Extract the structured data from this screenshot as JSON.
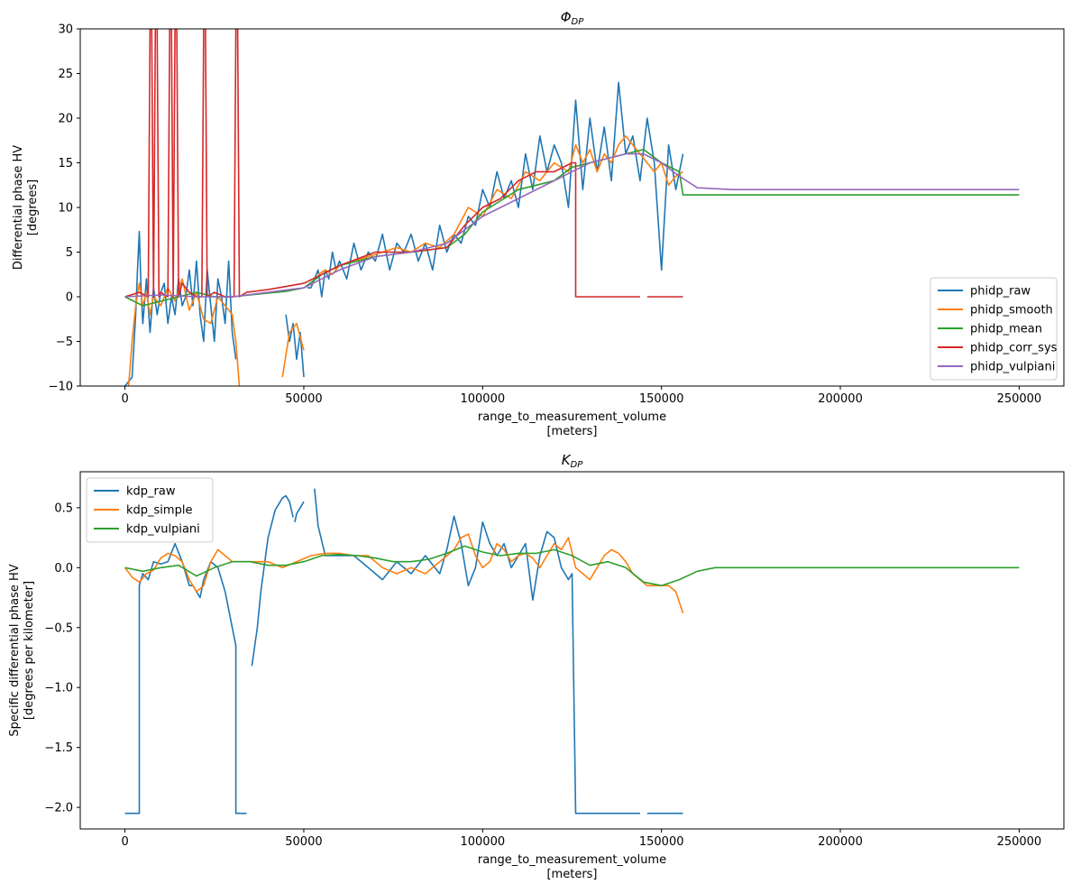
{
  "chart_data": [
    {
      "type": "line",
      "title": "Φ",
      "title_subscript": "DP",
      "xlabel": "range_to_measurement_volume",
      "xlabel_units": "[meters]",
      "ylabel": "Differential phase HV",
      "ylabel_units": "[degrees]",
      "xlim": [
        -12500,
        262500
      ],
      "ylim": [
        -10,
        30
      ],
      "x_ticks": [
        0,
        50000,
        100000,
        150000,
        200000,
        250000
      ],
      "x_tick_labels": [
        "0",
        "50000",
        "100000",
        "150000",
        "200000",
        "250000"
      ],
      "y_ticks": [
        -10,
        -5,
        0,
        5,
        10,
        15,
        20,
        25,
        30
      ],
      "y_tick_labels": [
        "−10",
        "−5",
        "0",
        "5",
        "10",
        "15",
        "20",
        "25",
        "30"
      ],
      "grid": false,
      "legend_position": "lower-right",
      "series": [
        {
          "name": "phidp_raw",
          "color": "#1f77b4",
          "x": [
            0,
            2000,
            3000,
            3500,
            4000,
            4500,
            5000,
            6000,
            7000,
            8000,
            9000,
            10000,
            11000,
            12000,
            13000,
            14000,
            15000,
            16000,
            17000,
            18000,
            19000,
            20000,
            21000,
            22000,
            23000,
            24000,
            25000,
            26000,
            27000,
            28000,
            29000,
            30000,
            31000,
            null,
            45000,
            46000,
            47000,
            48000,
            49000,
            50000,
            null,
            51000,
            52000,
            53000,
            54000,
            55000,
            56000,
            57000,
            58000,
            59000,
            60000,
            62000,
            64000,
            66000,
            68000,
            70000,
            72000,
            74000,
            76000,
            78000,
            80000,
            82000,
            84000,
            86000,
            88000,
            90000,
            92000,
            94000,
            96000,
            98000,
            100000,
            102000,
            104000,
            106000,
            108000,
            110000,
            112000,
            114000,
            116000,
            118000,
            120000,
            122000,
            124000,
            126000,
            128000,
            130000,
            132000,
            134000,
            136000,
            138000,
            140000,
            142000,
            144000,
            146000,
            148000,
            150000,
            152000,
            154000,
            156000
          ],
          "y": [
            -10,
            -9,
            -2,
            3,
            7.3,
            1,
            -3,
            2,
            -4,
            1,
            -2,
            0.5,
            1.5,
            -3,
            0,
            -2,
            2,
            -1,
            0,
            3,
            -1,
            4,
            -2,
            -5,
            3,
            -1,
            -5,
            2,
            0,
            -3,
            4,
            -4,
            -7,
            null,
            -2,
            -5,
            -3,
            -7,
            -4,
            -9,
            null,
            1,
            1,
            2,
            3,
            0,
            3,
            2,
            5,
            3,
            4,
            2,
            6,
            3,
            5,
            4,
            7,
            3,
            6,
            5,
            7,
            4,
            6,
            3,
            8,
            5,
            7,
            6,
            9,
            8,
            12,
            10,
            14,
            11,
            13,
            10,
            16,
            12,
            18,
            14,
            17,
            15,
            10,
            22,
            12,
            20,
            14,
            19,
            13,
            24,
            16,
            18,
            13,
            20,
            15,
            3,
            17,
            12,
            16
          ]
        },
        {
          "name": "phidp_smooth",
          "color": "#ff7f0e",
          "x": [
            1000,
            2000,
            3000,
            4000,
            5000,
            6000,
            7000,
            8000,
            10000,
            12000,
            14000,
            16000,
            18000,
            20000,
            22000,
            24000,
            26000,
            28000,
            30000,
            31000,
            32000,
            null,
            44000,
            46000,
            48000,
            50000,
            null,
            54000,
            56000,
            58000,
            60000,
            64000,
            68000,
            72000,
            76000,
            80000,
            84000,
            88000,
            92000,
            96000,
            100000,
            104000,
            108000,
            112000,
            116000,
            120000,
            124000,
            126000,
            128000,
            130000,
            132000,
            134000,
            136000,
            138000,
            140000,
            142000,
            144000,
            146000,
            148000,
            150000,
            152000,
            154000,
            156000
          ],
          "y": [
            -10,
            -5,
            -1,
            1.5,
            -1,
            0.5,
            -2,
            0,
            -1,
            1,
            -0.5,
            2,
            -1.5,
            0.5,
            -2.5,
            -3,
            0,
            -1,
            -2,
            -5,
            -10,
            null,
            -9,
            -4,
            -3,
            -6,
            null,
            2.5,
            3,
            2.5,
            3.5,
            4,
            4.5,
            5,
            5.5,
            5,
            6,
            5.5,
            7,
            10,
            9,
            12,
            11,
            14,
            13,
            15,
            14,
            17,
            15,
            16.5,
            14,
            16,
            15,
            17,
            18,
            17,
            16,
            15,
            14,
            15,
            12.5,
            13.5,
            14
          ]
        },
        {
          "name": "phidp_mean",
          "color": "#2ca02c",
          "x": [
            0,
            5000,
            10000,
            15000,
            20000,
            25000,
            30000,
            35000,
            40000,
            45000,
            50000,
            55000,
            60000,
            70000,
            80000,
            90000,
            95000,
            100000,
            110000,
            115000,
            120000,
            125000,
            130000,
            135000,
            140000,
            145000,
            150000,
            155000,
            156000,
            160000,
            200000,
            250000
          ],
          "y": [
            0,
            -1,
            -0.5,
            0,
            0.5,
            0,
            0,
            0.2,
            0.4,
            0.6,
            1,
            2.5,
            3.5,
            4.5,
            5,
            5.5,
            7,
            9.5,
            12,
            12.5,
            13,
            14.5,
            15,
            15.5,
            16,
            16.5,
            15,
            14,
            11.4,
            11.4,
            11.4,
            11.4
          ]
        },
        {
          "name": "phidp_corr_sys",
          "color": "#d62728",
          "x": [
            0,
            4000,
            6500,
            7000,
            7500,
            8000,
            8500,
            9000,
            9500,
            10000,
            12000,
            12500,
            13000,
            13500,
            14000,
            14500,
            15000,
            16000,
            18000,
            20000,
            21500,
            22000,
            22500,
            23000,
            25000,
            28000,
            30500,
            31000,
            31500,
            32000,
            34000,
            40000,
            50000,
            55000,
            60000,
            70000,
            80000,
            90000,
            95000,
            100000,
            105000,
            110000,
            115000,
            120000,
            125000,
            126000,
            126000,
            130000,
            140000,
            144000,
            null,
            146000,
            150000,
            156000
          ],
          "y": [
            0,
            0.5,
            0,
            30,
            30,
            0,
            30,
            30,
            0,
            0.5,
            0,
            30,
            30,
            0,
            30,
            30,
            0,
            1.5,
            0.5,
            0,
            0,
            30,
            30,
            0,
            0.5,
            0,
            0,
            30,
            30,
            0,
            0.5,
            0.8,
            1.5,
            2.5,
            3.5,
            5,
            5,
            5.5,
            8,
            10,
            11,
            13,
            14,
            14,
            15,
            15,
            0,
            0,
            0,
            0,
            null,
            0,
            0,
            0
          ]
        },
        {
          "name": "phidp_vulpiani",
          "color": "#9467bd",
          "x": [
            0,
            10000,
            20000,
            30000,
            40000,
            50000,
            55000,
            60000,
            70000,
            80000,
            90000,
            100000,
            110000,
            120000,
            130000,
            140000,
            145000,
            150000,
            155000,
            160000,
            170000,
            200000,
            250000
          ],
          "y": [
            0,
            0.2,
            0,
            0,
            0.5,
            1,
            2,
            3,
            4.5,
            5,
            6,
            9,
            11,
            13,
            15,
            16,
            16,
            15,
            13.5,
            12.2,
            12,
            12,
            12
          ]
        }
      ]
    },
    {
      "type": "line",
      "title": "K",
      "title_subscript": "DP",
      "xlabel": "range_to_measurement_volume",
      "xlabel_units": "[meters]",
      "ylabel": "Specific differential phase HV",
      "ylabel_units": "[degrees per kilometer]",
      "xlim": [
        -12500,
        262500
      ],
      "ylim": [
        -2.18,
        0.8
      ],
      "x_ticks": [
        0,
        50000,
        100000,
        150000,
        200000,
        250000
      ],
      "x_tick_labels": [
        "0",
        "50000",
        "100000",
        "150000",
        "200000",
        "250000"
      ],
      "y_ticks": [
        -2.0,
        -1.5,
        -1.0,
        -0.5,
        0.0,
        0.5
      ],
      "y_tick_labels": [
        "−2.0",
        "−1.5",
        "−1.0",
        "−0.5",
        "0.0",
        "0.5"
      ],
      "grid": false,
      "legend_position": "top-left",
      "series": [
        {
          "name": "kdp_raw",
          "color": "#1f77b4",
          "x": [
            0,
            4000,
            4000,
            5000,
            6500,
            7000,
            8000,
            10000,
            12000,
            14000,
            16000,
            18000,
            19000,
            20000,
            21000,
            22000,
            24000,
            26000,
            28000,
            30000,
            31000,
            31000,
            32000,
            34000,
            null,
            35500,
            37000,
            38000,
            40000,
            42000,
            44000,
            45000,
            46000,
            47000,
            null,
            47500,
            48000,
            49000,
            50000,
            null,
            53000,
            54000,
            56000,
            58000,
            60000,
            64000,
            68000,
            72000,
            76000,
            80000,
            84000,
            88000,
            90000,
            92000,
            94000,
            96000,
            98000,
            100000,
            102000,
            104000,
            106000,
            108000,
            110000,
            112000,
            114000,
            116000,
            118000,
            120000,
            122000,
            124000,
            125000,
            126000,
            126000,
            130000,
            140000,
            144000,
            null,
            146000,
            150000,
            156000
          ],
          "y": [
            -2.05,
            -2.05,
            -0.15,
            -0.05,
            -0.1,
            -0.05,
            0.05,
            0.03,
            0.05,
            0.2,
            0.05,
            -0.15,
            -0.15,
            -0.2,
            -0.25,
            -0.1,
            0.05,
            0.0,
            -0.2,
            -0.5,
            -0.65,
            -2.05,
            -2.05,
            -2.05,
            null,
            -0.82,
            -0.5,
            -0.2,
            0.25,
            0.48,
            0.58,
            0.6,
            0.55,
            0.42,
            null,
            0.38,
            0.45,
            0.5,
            0.55,
            null,
            0.66,
            0.35,
            0.1,
            0.1,
            0.1,
            0.1,
            0.0,
            -0.1,
            0.05,
            -0.05,
            0.1,
            -0.05,
            0.15,
            0.43,
            0.2,
            -0.15,
            0.0,
            0.38,
            0.2,
            0.1,
            0.2,
            0.0,
            0.1,
            0.2,
            -0.27,
            0.1,
            0.3,
            0.25,
            0.0,
            -0.1,
            -0.05,
            -2.05,
            -2.05,
            -2.05,
            -2.05,
            -2.05,
            null,
            -2.05,
            -2.05,
            -2.05
          ]
        },
        {
          "name": "kdp_simple",
          "color": "#ff7f0e",
          "x": [
            0,
            2000,
            4000,
            6000,
            8000,
            10000,
            12000,
            14000,
            16000,
            18000,
            20000,
            22000,
            24000,
            26000,
            28000,
            30000,
            32000,
            36000,
            40000,
            44000,
            48000,
            52000,
            56000,
            60000,
            64000,
            68000,
            72000,
            76000,
            80000,
            84000,
            88000,
            92000,
            94000,
            96000,
            98000,
            100000,
            102000,
            104000,
            106000,
            108000,
            110000,
            112000,
            114000,
            116000,
            118000,
            120000,
            122000,
            124000,
            126000,
            128000,
            130000,
            132000,
            134000,
            136000,
            138000,
            140000,
            142000,
            144000,
            146000,
            148000,
            150000,
            152000,
            154000,
            156000
          ],
          "y": [
            0.0,
            -0.08,
            -0.12,
            -0.05,
            -0.02,
            0.08,
            0.12,
            0.1,
            0.05,
            -0.1,
            -0.2,
            -0.15,
            0.05,
            0.15,
            0.1,
            0.05,
            0.05,
            0.05,
            0.05,
            0.0,
            0.05,
            0.1,
            0.12,
            0.12,
            0.1,
            0.1,
            0.0,
            -0.05,
            0.0,
            -0.05,
            0.05,
            0.15,
            0.25,
            0.28,
            0.1,
            0.0,
            0.05,
            0.2,
            0.15,
            0.05,
            0.1,
            0.12,
            0.08,
            0.0,
            0.1,
            0.2,
            0.15,
            0.25,
            0.0,
            -0.05,
            -0.1,
            0.0,
            0.1,
            0.15,
            0.12,
            0.05,
            -0.05,
            -0.1,
            -0.15,
            -0.15,
            -0.15,
            -0.15,
            -0.2,
            -0.38
          ]
        },
        {
          "name": "kdp_vulpiani",
          "color": "#2ca02c",
          "x": [
            0,
            5000,
            10000,
            15000,
            20000,
            25000,
            30000,
            35000,
            40000,
            45000,
            50000,
            55000,
            60000,
            65000,
            70000,
            75000,
            80000,
            85000,
            90000,
            95000,
            100000,
            105000,
            110000,
            115000,
            120000,
            125000,
            130000,
            135000,
            140000,
            145000,
            150000,
            155000,
            160000,
            165000,
            170000,
            200000,
            250000
          ],
          "y": [
            0.0,
            -0.03,
            0.0,
            0.02,
            -0.07,
            0.0,
            0.05,
            0.05,
            0.02,
            0.02,
            0.05,
            0.1,
            0.11,
            0.1,
            0.08,
            0.05,
            0.05,
            0.07,
            0.12,
            0.18,
            0.13,
            0.1,
            0.12,
            0.12,
            0.15,
            0.1,
            0.02,
            0.05,
            0.0,
            -0.12,
            -0.15,
            -0.1,
            -0.03,
            0.0,
            0.0,
            0.0,
            0.0
          ]
        }
      ]
    }
  ]
}
